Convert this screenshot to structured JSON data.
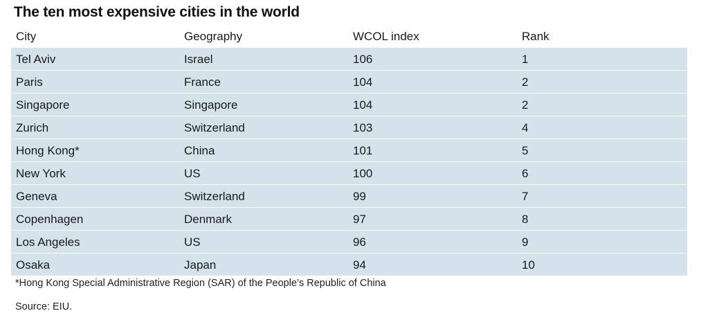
{
  "title": "The ten most expensive cities in the world",
  "table": {
    "headers": {
      "city": "City",
      "geography": "Geography",
      "index": "WCOL index",
      "rank": "Rank"
    },
    "rows": [
      {
        "city": "Tel Aviv",
        "geography": "Israel",
        "index": "106",
        "rank": "1"
      },
      {
        "city": "Paris",
        "geography": "France",
        "index": "104",
        "rank": "2"
      },
      {
        "city": "Singapore",
        "geography": "Singapore",
        "index": "104",
        "rank": "2"
      },
      {
        "city": "Zurich",
        "geography": "Switzerland",
        "index": "103",
        "rank": "4"
      },
      {
        "city": "Hong Kong*",
        "geography": "China",
        "index": "101",
        "rank": "5"
      },
      {
        "city": "New York",
        "geography": "US",
        "index": "100",
        "rank": "6"
      },
      {
        "city": "Geneva",
        "geography": "Switzerland",
        "index": "99",
        "rank": "7"
      },
      {
        "city": "Copenhagen",
        "geography": "Denmark",
        "index": "97",
        "rank": "8"
      },
      {
        "city": "Los Angeles",
        "geography": "US",
        "index": "96",
        "rank": "9"
      },
      {
        "city": "Osaka",
        "geography": "Japan",
        "index": "94",
        "rank": "10"
      }
    ]
  },
  "footnote": "*Hong Kong Special Administrative Region (SAR) of the People’s Republic of China",
  "source": "Source: EIU.",
  "colors": {
    "row_background": "#d3e2eb",
    "text": "#1a1a1a"
  }
}
